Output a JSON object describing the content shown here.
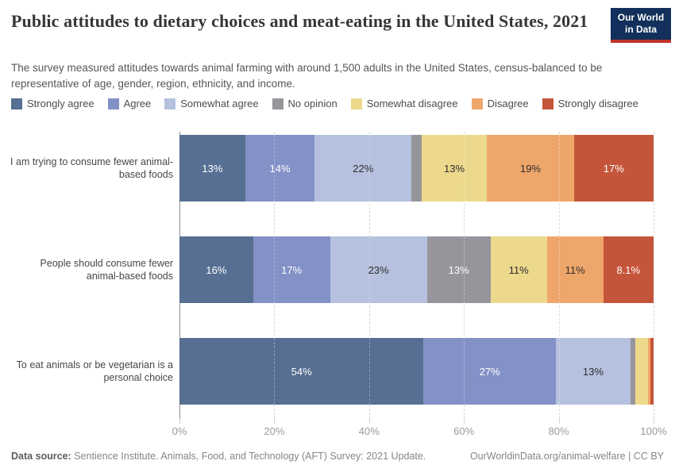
{
  "header": {
    "title": "Public attitudes to dietary choices and meat-eating in the United States, 2021",
    "subtitle": "The survey measured attitudes towards animal farming with around 1,500 adults in the United States, census-balanced to be representative of age, gender, region, ethnicity, and income.",
    "logo_line1": "Our World",
    "logo_line2": "in Data"
  },
  "legend": [
    {
      "label": "Strongly agree",
      "color": "#566f92",
      "text_color": "#ffffff"
    },
    {
      "label": "Agree",
      "color": "#8391c7",
      "text_color": "#ffffff"
    },
    {
      "label": "Somewhat agree",
      "color": "#b5c1de",
      "text_color": "#2d2d2d"
    },
    {
      "label": "No opinion",
      "color": "#97959c",
      "text_color": "#ffffff"
    },
    {
      "label": "Somewhat disagree",
      "color": "#edd98c",
      "text_color": "#2d2d2d"
    },
    {
      "label": "Disagree",
      "color": "#efa66b",
      "text_color": "#2d2d2d"
    },
    {
      "label": "Strongly disagree",
      "color": "#c5553a",
      "text_color": "#ffffff"
    }
  ],
  "chart_data": {
    "type": "bar",
    "stacked": true,
    "orientation": "horizontal",
    "categories": [
      "I am trying to consume fewer animal-based foods",
      "People should consume fewer animal-based foods",
      "To eat animals or be vegetarian is a personal choice"
    ],
    "series": [
      {
        "name": "Strongly agree",
        "values": [
          13,
          16,
          54
        ]
      },
      {
        "name": "Agree",
        "values": [
          14,
          17,
          27
        ]
      },
      {
        "name": "Somewhat agree",
        "values": [
          22,
          23,
          13
        ]
      },
      {
        "name": "No opinion",
        "values": [
          2.8,
          13,
          1.2
        ]
      },
      {
        "name": "Somewhat disagree",
        "values": [
          13,
          11,
          3
        ]
      },
      {
        "name": "Disagree",
        "values": [
          19,
          11,
          0.7
        ]
      },
      {
        "name": "Strongly disagree",
        "values": [
          17,
          8.1,
          0.7
        ]
      }
    ],
    "data_labels": [
      [
        "13%",
        "14%",
        "22%",
        "",
        "13%",
        "19%",
        "17%"
      ],
      [
        "16%",
        "17%",
        "23%",
        "13%",
        "11%",
        "11%",
        "8.1%"
      ],
      [
        "54%",
        "27%",
        "13%",
        "",
        "",
        "",
        ""
      ]
    ],
    "xlim": [
      0,
      100
    ],
    "x_ticks": [
      "0%",
      "20%",
      "40%",
      "60%",
      "80%",
      "100%"
    ],
    "grid": true,
    "legend_position": "top"
  },
  "footer": {
    "source_label": "Data source:",
    "source_text": " Sentience Institute. Animals, Food, and Technology (AFT) Survey: 2021 Update.",
    "link": "OurWorldinData.org/animal-welfare",
    "license": " | CC BY"
  }
}
